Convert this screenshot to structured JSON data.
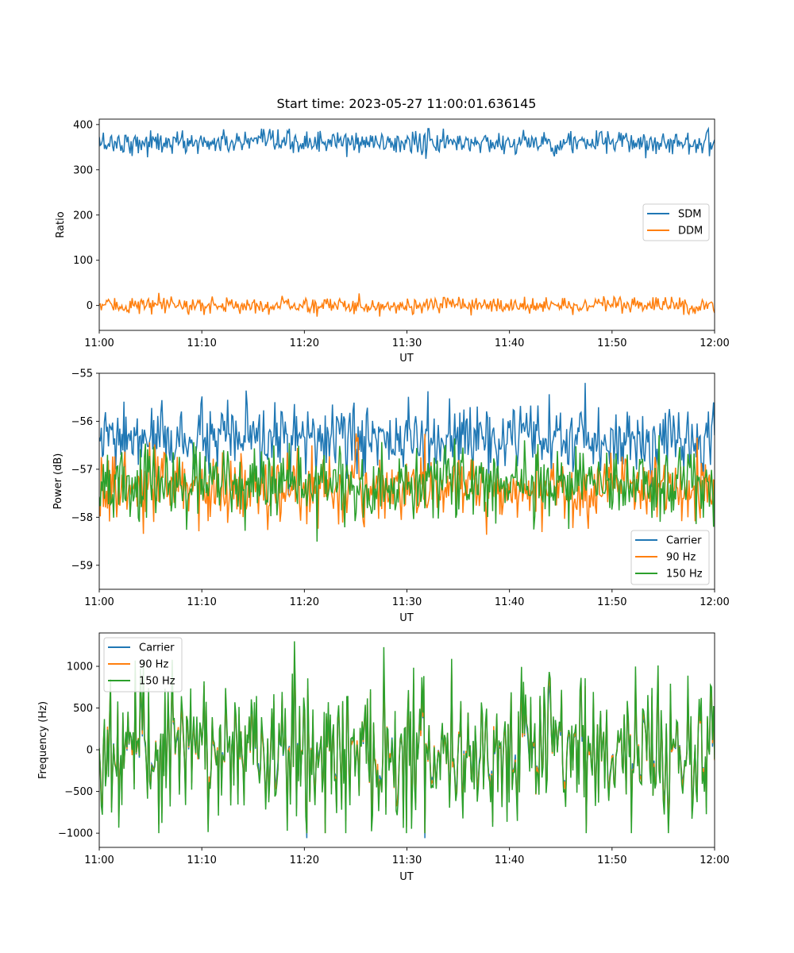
{
  "chart_data": [
    {
      "type": "line",
      "title": "Start time: 2023-05-27 11:00:01.636145",
      "xlabel": "UT",
      "ylabel": "Ratio",
      "xlim": [
        "11:00",
        "12:00"
      ],
      "ylim": [
        -55,
        412
      ],
      "x_ticks": [
        "11:00",
        "11:10",
        "11:20",
        "11:30",
        "11:40",
        "11:50",
        "12:00"
      ],
      "y_ticks": [
        0,
        100,
        200,
        300,
        400
      ],
      "legend_position": "center-right",
      "grid": false,
      "series": [
        {
          "name": "SDM",
          "color": "#1f77b4",
          "mean": 360,
          "noise": 13,
          "min": 305,
          "max": 391
        },
        {
          "name": "DDM",
          "color": "#ff7f0e",
          "mean": 0,
          "noise": 9,
          "min": -33,
          "max": 32
        }
      ]
    },
    {
      "type": "line",
      "title": "",
      "xlabel": "UT",
      "ylabel": "Power (dB)",
      "xlim": [
        "11:00",
        "12:00"
      ],
      "ylim": [
        -59.5,
        -55
      ],
      "x_ticks": [
        "11:00",
        "11:10",
        "11:20",
        "11:30",
        "11:40",
        "11:50",
        "12:00"
      ],
      "y_ticks": [
        -59,
        -58,
        -57,
        -56,
        -55
      ],
      "legend_position": "lower-right",
      "grid": false,
      "series": [
        {
          "name": "Carrier",
          "color": "#1f77b4",
          "mean": -56.4,
          "noise": 0.35,
          "min": -57.6,
          "max": -55.2
        },
        {
          "name": "90 Hz",
          "color": "#ff7f0e",
          "mean": -57.4,
          "noise": 0.35,
          "min": -59.3,
          "max": -56.2
        },
        {
          "name": "150 Hz",
          "color": "#2ca02c",
          "mean": -57.3,
          "noise": 0.38,
          "min": -58.9,
          "max": -56.1
        }
      ]
    },
    {
      "type": "line",
      "title": "",
      "xlabel": "UT",
      "ylabel": "Frequency (Hz)",
      "xlim": [
        "11:00",
        "12:00"
      ],
      "ylim": [
        -1170,
        1400
      ],
      "x_ticks": [
        "11:00",
        "11:10",
        "11:20",
        "11:30",
        "11:40",
        "11:50",
        "12:00"
      ],
      "y_ticks": [
        -1000,
        -500,
        0,
        500,
        1000
      ],
      "legend_position": "upper-left",
      "grid": false,
      "series": [
        {
          "name": "Carrier",
          "color": "#1f77b4",
          "mean": 0,
          "noise": 380,
          "min": -1060,
          "max": 1060
        },
        {
          "name": "90 Hz",
          "color": "#ff7f0e",
          "mean": 0,
          "noise": 400,
          "min": -1000,
          "max": 1200
        },
        {
          "name": "150 Hz",
          "color": "#2ca02c",
          "mean": 0,
          "noise": 420,
          "min": -1000,
          "max": 1300
        }
      ]
    }
  ]
}
